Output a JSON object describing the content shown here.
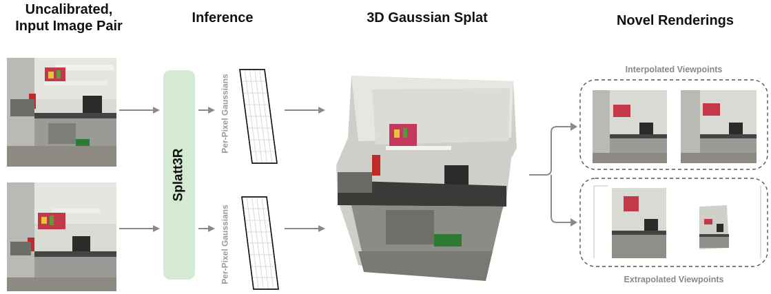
{
  "titles": {
    "input_line1": "Uncalibrated,",
    "input_line2": "Input Image Pair",
    "inference": "Inference",
    "splat": "3D Gaussian Splat",
    "novel": "Novel Renderings"
  },
  "model": {
    "name": "Splatt3R"
  },
  "gaussians": {
    "label_top": "Per-Pixel Gaussians",
    "label_bottom": "Per-Pixel Gaussians"
  },
  "views": {
    "interpolated": "Interpolated Viewpoints",
    "extrapolated": "Extrapolated Viewpoints"
  },
  "colors": {
    "model_box": "#d5ead3",
    "arrow": "#8a8a8a",
    "grid_line": "#cfcfcf",
    "subtitle": "#888888"
  }
}
